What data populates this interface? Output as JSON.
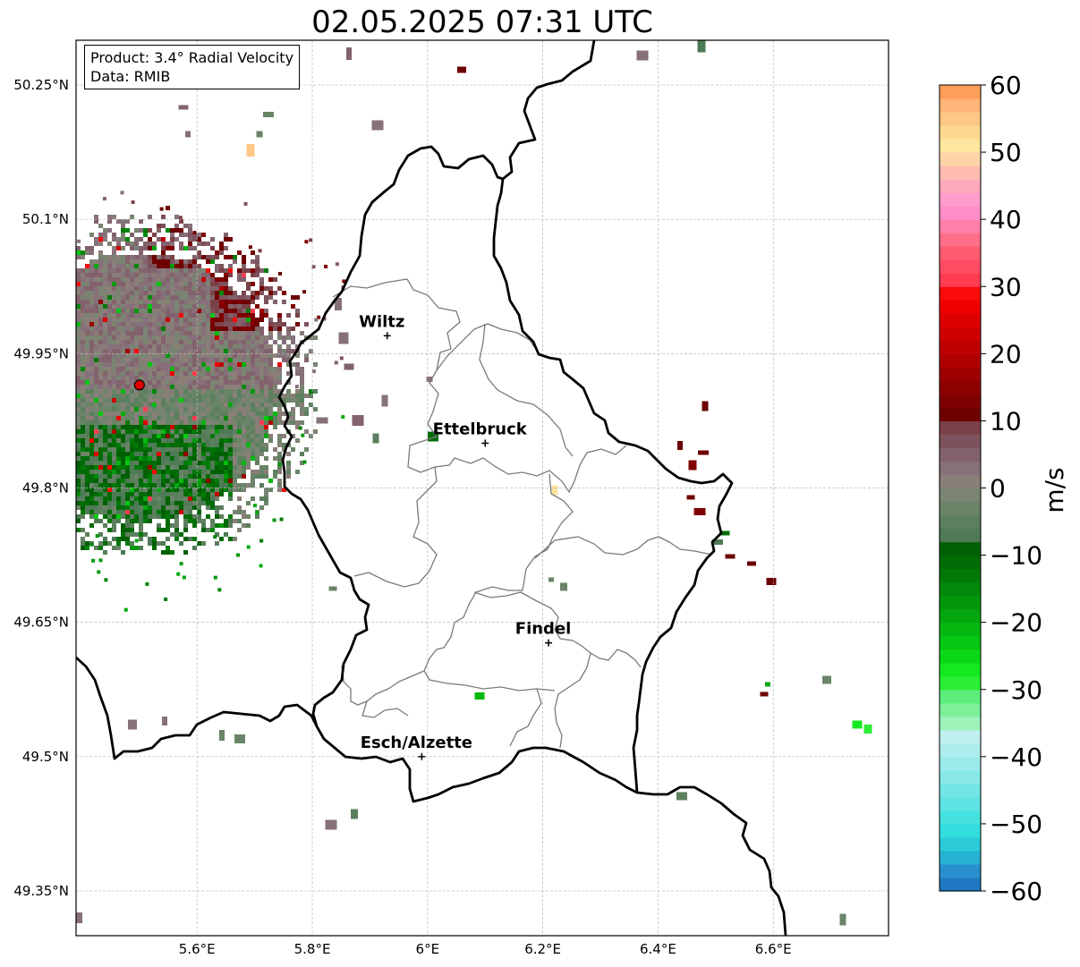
{
  "title": "02.05.2025 07:31 UTC",
  "info": {
    "product": "Product: 3.4° Radial Velocity",
    "data": "Data: RMIB"
  },
  "map": {
    "lon_range": [
      5.39,
      6.8
    ],
    "lat_range": [
      49.3,
      50.3
    ],
    "x_ticks": [
      {
        "value": 5.6,
        "label": "5.6°E"
      },
      {
        "value": 5.8,
        "label": "5.8°E"
      },
      {
        "value": 6.0,
        "label": "6°E"
      },
      {
        "value": 6.2,
        "label": "6.2°E"
      },
      {
        "value": 6.4,
        "label": "6.4°E"
      },
      {
        "value": 6.6,
        "label": "6.6°E"
      }
    ],
    "y_ticks": [
      {
        "value": 50.25,
        "label": "50.25°N"
      },
      {
        "value": 50.1,
        "label": "50.1°N"
      },
      {
        "value": 49.95,
        "label": "49.95°N"
      },
      {
        "value": 49.8,
        "label": "49.8°N"
      },
      {
        "value": 49.65,
        "label": "49.65°N"
      },
      {
        "value": 49.5,
        "label": "49.5°N"
      },
      {
        "value": 49.35,
        "label": "49.35°N"
      }
    ],
    "cities": [
      {
        "name": "Wiltz",
        "lon": 5.93,
        "lat": 49.97
      },
      {
        "name": "Ettelbruck",
        "lon": 6.1,
        "lat": 49.85
      },
      {
        "name": "Findel",
        "lon": 6.21,
        "lat": 49.627
      },
      {
        "name": "Esch/Alzette",
        "lon": 5.99,
        "lat": 49.5
      }
    ],
    "radar_site": {
      "lon": 5.5,
      "lat": 49.915
    }
  },
  "colorbar": {
    "label": "m/s",
    "range": [
      -60,
      60
    ],
    "ticks": [
      {
        "value": 60,
        "label": "60"
      },
      {
        "value": 50,
        "label": "50"
      },
      {
        "value": 40,
        "label": "40"
      },
      {
        "value": 30,
        "label": "30"
      },
      {
        "value": 20,
        "label": "20"
      },
      {
        "value": 10,
        "label": "10"
      },
      {
        "value": 0,
        "label": "0"
      },
      {
        "value": -10,
        "label": "−10"
      },
      {
        "value": -20,
        "label": "−20"
      },
      {
        "value": -30,
        "label": "−30"
      },
      {
        "value": -40,
        "label": "−40"
      },
      {
        "value": -50,
        "label": "−50"
      },
      {
        "value": -60,
        "label": "−60"
      }
    ],
    "bands": [
      {
        "from": -60,
        "to": -58,
        "color": "#1f78c1"
      },
      {
        "from": -58,
        "to": -56,
        "color": "#2a8fcf"
      },
      {
        "from": -56,
        "to": -54,
        "color": "#26b2d2"
      },
      {
        "from": -54,
        "to": -52,
        "color": "#2bcbd7"
      },
      {
        "from": -52,
        "to": -50,
        "color": "#33dede"
      },
      {
        "from": -50,
        "to": -48,
        "color": "#46e1e1"
      },
      {
        "from": -48,
        "to": -46,
        "color": "#5ee4e4"
      },
      {
        "from": -46,
        "to": -44,
        "color": "#72e6e6"
      },
      {
        "from": -44,
        "to": -42,
        "color": "#88e8e8"
      },
      {
        "from": -42,
        "to": -40,
        "color": "#9deaea"
      },
      {
        "from": -40,
        "to": -38,
        "color": "#aeeded"
      },
      {
        "from": -38,
        "to": -36,
        "color": "#bff0f0"
      },
      {
        "from": -36,
        "to": -34,
        "color": "#9ef2ba"
      },
      {
        "from": -34,
        "to": -32,
        "color": "#7ef09a"
      },
      {
        "from": -32,
        "to": -30,
        "color": "#5ced7b"
      },
      {
        "from": -30,
        "to": -28,
        "color": "#2aee35"
      },
      {
        "from": -28,
        "to": -26,
        "color": "#14e81f"
      },
      {
        "from": -26,
        "to": -24,
        "color": "#0ad816"
      },
      {
        "from": -24,
        "to": -22,
        "color": "#07c812"
      },
      {
        "from": -22,
        "to": -20,
        "color": "#05b810"
      },
      {
        "from": -20,
        "to": -18,
        "color": "#04a80e"
      },
      {
        "from": -18,
        "to": -16,
        "color": "#03980c"
      },
      {
        "from": -16,
        "to": -14,
        "color": "#02880a"
      },
      {
        "from": -14,
        "to": -12,
        "color": "#027a08"
      },
      {
        "from": -12,
        "to": -10,
        "color": "#016c06"
      },
      {
        "from": -10,
        "to": -8,
        "color": "#006004"
      },
      {
        "from": -8,
        "to": -6,
        "color": "#4f7a56"
      },
      {
        "from": -6,
        "to": -4,
        "color": "#5c7f5e"
      },
      {
        "from": -4,
        "to": -2,
        "color": "#6a8468"
      },
      {
        "from": -2,
        "to": 0,
        "color": "#7a8472"
      },
      {
        "from": 0,
        "to": 2,
        "color": "#8a7e78"
      },
      {
        "from": 2,
        "to": 4,
        "color": "#86707a"
      },
      {
        "from": 4,
        "to": 6,
        "color": "#82626c"
      },
      {
        "from": 6,
        "to": 8,
        "color": "#7e525c"
      },
      {
        "from": 8,
        "to": 10,
        "color": "#7a4248"
      },
      {
        "from": 10,
        "to": 12,
        "color": "#6e0000"
      },
      {
        "from": 12,
        "to": 14,
        "color": "#7e0000"
      },
      {
        "from": 14,
        "to": 16,
        "color": "#8e0000"
      },
      {
        "from": 16,
        "to": 18,
        "color": "#9e0000"
      },
      {
        "from": 18,
        "to": 20,
        "color": "#ae0000"
      },
      {
        "from": 20,
        "to": 22,
        "color": "#be0000"
      },
      {
        "from": 22,
        "to": 24,
        "color": "#ce0000"
      },
      {
        "from": 24,
        "to": 26,
        "color": "#de0000"
      },
      {
        "from": 26,
        "to": 28,
        "color": "#ee0000"
      },
      {
        "from": 28,
        "to": 30,
        "color": "#fa0a0a"
      },
      {
        "from": 30,
        "to": 32,
        "color": "#ff3c50"
      },
      {
        "from": 32,
        "to": 34,
        "color": "#ff4c62"
      },
      {
        "from": 34,
        "to": 36,
        "color": "#ff5c72"
      },
      {
        "from": 36,
        "to": 38,
        "color": "#ff6e88"
      },
      {
        "from": 38,
        "to": 40,
        "color": "#ff80a8"
      },
      {
        "from": 40,
        "to": 42,
        "color": "#ff8ec8"
      },
      {
        "from": 42,
        "to": 44,
        "color": "#ff9ccc"
      },
      {
        "from": 44,
        "to": 46,
        "color": "#ffaabc"
      },
      {
        "from": 46,
        "to": 48,
        "color": "#ffbcb0"
      },
      {
        "from": 48,
        "to": 50,
        "color": "#ffd4a8"
      },
      {
        "from": 50,
        "to": 52,
        "color": "#ffe6a0"
      },
      {
        "from": 52,
        "to": 54,
        "color": "#ffd890"
      },
      {
        "from": 54,
        "to": 56,
        "color": "#ffc884"
      },
      {
        "from": 56,
        "to": 58,
        "color": "#ffb478"
      },
      {
        "from": 58,
        "to": 60,
        "color": "#ffa05a"
      }
    ]
  }
}
